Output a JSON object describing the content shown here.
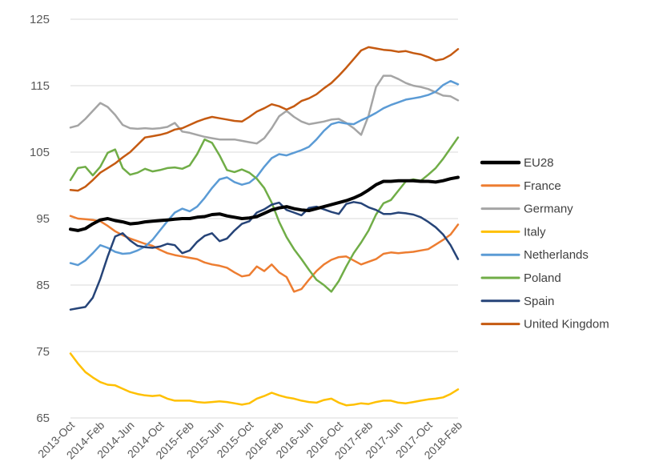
{
  "chart_data": {
    "type": "line",
    "title": "",
    "xlabel": "",
    "ylabel": "",
    "ylim": [
      65,
      125
    ],
    "yticks": [
      65,
      75,
      85,
      95,
      105,
      115,
      125
    ],
    "grid": true,
    "legend_position": "right",
    "x": [
      "2013-Oct",
      "2013-Nov",
      "2013-Dec",
      "2014-Jan",
      "2014-Feb",
      "2014-Mar",
      "2014-Apr",
      "2014-May",
      "2014-Jun",
      "2014-Jul",
      "2014-Aug",
      "2014-Sep",
      "2014-Oct",
      "2014-Nov",
      "2014-Dec",
      "2015-Jan",
      "2015-Feb",
      "2015-Mar",
      "2015-Apr",
      "2015-May",
      "2015-Jun",
      "2015-Jul",
      "2015-Aug",
      "2015-Sep",
      "2015-Oct",
      "2015-Nov",
      "2015-Dec",
      "2016-Jan",
      "2016-Feb",
      "2016-Mar",
      "2016-Apr",
      "2016-May",
      "2016-Jun",
      "2016-Jul",
      "2016-Aug",
      "2016-Sep",
      "2016-Oct",
      "2016-Nov",
      "2016-Dec",
      "2017-Jan",
      "2017-Feb",
      "2017-Mar",
      "2017-Apr",
      "2017-May",
      "2017-Jun",
      "2017-Jul",
      "2017-Aug",
      "2017-Sep",
      "2017-Oct",
      "2017-Nov",
      "2017-Dec",
      "2018-Jan",
      "2018-Feb"
    ],
    "x_tick_labels": [
      "2013-Oct",
      "2014-Feb",
      "2014-Jun",
      "2014-Oct",
      "2015-Feb",
      "2015-Jun",
      "2015-Oct",
      "2016-Feb",
      "2016-Jun",
      "2016-Oct",
      "2017-Feb",
      "2017-Jun",
      "2017-Oct",
      "2018-Feb"
    ],
    "series": [
      {
        "name": "EU28",
        "color": "#000000",
        "width": 4,
        "values": [
          93.4,
          93.2,
          93.5,
          94.2,
          94.8,
          95.0,
          94.7,
          94.5,
          94.2,
          94.3,
          94.5,
          94.6,
          94.7,
          94.8,
          94.9,
          95.0,
          95.0,
          95.2,
          95.3,
          95.6,
          95.7,
          95.4,
          95.2,
          95.0,
          95.1,
          95.3,
          95.8,
          96.3,
          96.6,
          96.8,
          96.5,
          96.3,
          96.2,
          96.5,
          96.8,
          97.1,
          97.4,
          97.7,
          98.1,
          98.6,
          99.3,
          100.1,
          100.6,
          100.6,
          100.7,
          100.7,
          100.7,
          100.6,
          100.6,
          100.5,
          100.7,
          101.0,
          101.2
        ]
      },
      {
        "name": "France",
        "color": "#ED7D31",
        "width": 2.5,
        "values": [
          95.4,
          95.0,
          94.9,
          94.8,
          94.6,
          93.9,
          93.1,
          92.5,
          92.0,
          91.6,
          91.2,
          90.9,
          90.3,
          89.8,
          89.5,
          89.3,
          89.1,
          88.9,
          88.4,
          88.1,
          87.9,
          87.6,
          86.9,
          86.3,
          86.5,
          87.8,
          87.1,
          88.1,
          86.9,
          86.2,
          84.0,
          84.4,
          85.8,
          87.1,
          88.1,
          88.8,
          89.2,
          89.3,
          88.7,
          88.1,
          88.5,
          88.9,
          89.7,
          89.9,
          89.8,
          89.9,
          90.0,
          90.2,
          90.4,
          91.1,
          91.8,
          92.6,
          94.1
        ]
      },
      {
        "name": "Germany",
        "color": "#A5A5A5",
        "width": 2.5,
        "values": [
          108.7,
          109.0,
          110.0,
          111.2,
          112.4,
          111.8,
          110.6,
          109.1,
          108.6,
          108.5,
          108.6,
          108.5,
          108.6,
          108.8,
          109.4,
          108.1,
          107.9,
          107.6,
          107.3,
          107.1,
          106.9,
          106.9,
          106.9,
          106.7,
          106.5,
          106.3,
          107.1,
          108.6,
          110.4,
          111.2,
          110.3,
          109.6,
          109.2,
          109.4,
          109.6,
          109.9,
          110.0,
          109.4,
          108.6,
          107.6,
          110.5,
          114.8,
          116.5,
          116.5,
          116.0,
          115.4,
          115.0,
          114.8,
          114.5,
          114.0,
          113.5,
          113.4,
          112.8
        ]
      },
      {
        "name": "Italy",
        "color": "#FFC000",
        "width": 2.5,
        "values": [
          74.7,
          73.2,
          71.9,
          71.1,
          70.4,
          70.0,
          69.9,
          69.4,
          68.9,
          68.6,
          68.4,
          68.3,
          68.4,
          67.9,
          67.6,
          67.6,
          67.6,
          67.4,
          67.3,
          67.4,
          67.5,
          67.4,
          67.2,
          67.0,
          67.2,
          67.9,
          68.3,
          68.8,
          68.4,
          68.1,
          67.9,
          67.6,
          67.4,
          67.3,
          67.7,
          67.9,
          67.3,
          66.9,
          67.0,
          67.2,
          67.1,
          67.4,
          67.6,
          67.6,
          67.3,
          67.2,
          67.4,
          67.6,
          67.8,
          67.9,
          68.1,
          68.6,
          69.3
        ]
      },
      {
        "name": "Netherlands",
        "color": "#5B9BD5",
        "width": 2.5,
        "values": [
          88.3,
          88.0,
          88.7,
          89.8,
          91.0,
          90.6,
          90.0,
          89.7,
          89.8,
          90.2,
          90.8,
          91.8,
          93.2,
          94.6,
          95.9,
          96.5,
          96.1,
          96.8,
          98.1,
          99.6,
          100.9,
          101.2,
          100.5,
          100.1,
          100.4,
          101.3,
          102.8,
          104.1,
          104.7,
          104.5,
          104.9,
          105.3,
          105.8,
          106.9,
          108.2,
          109.2,
          109.5,
          109.3,
          109.2,
          109.8,
          110.3,
          110.9,
          111.6,
          112.1,
          112.5,
          112.9,
          113.1,
          113.3,
          113.6,
          114.1,
          115.1,
          115.7,
          115.2
        ]
      },
      {
        "name": "Poland",
        "color": "#70AD47",
        "width": 2.5,
        "values": [
          100.8,
          102.6,
          102.8,
          101.5,
          102.8,
          104.9,
          105.4,
          102.6,
          101.6,
          101.9,
          102.5,
          102.1,
          102.3,
          102.6,
          102.7,
          102.5,
          103.0,
          104.7,
          106.9,
          106.4,
          104.5,
          102.3,
          102.0,
          102.4,
          101.9,
          101.0,
          99.6,
          97.4,
          94.5,
          92.2,
          90.4,
          88.9,
          87.3,
          85.8,
          85.0,
          84.0,
          85.6,
          87.8,
          89.8,
          91.4,
          93.2,
          95.6,
          97.3,
          97.8,
          99.2,
          100.6,
          100.9,
          100.7,
          101.6,
          102.6,
          104.0,
          105.6,
          107.2
        ]
      },
      {
        "name": "Spain",
        "color": "#264478",
        "width": 2.5,
        "values": [
          81.3,
          81.5,
          81.7,
          83.1,
          85.9,
          89.3,
          92.3,
          92.8,
          91.7,
          90.9,
          90.7,
          90.6,
          90.8,
          91.2,
          91.0,
          89.8,
          90.2,
          91.5,
          92.4,
          92.8,
          91.6,
          92.0,
          93.2,
          94.2,
          94.6,
          95.9,
          96.4,
          97.1,
          97.4,
          96.3,
          95.9,
          95.5,
          96.6,
          96.8,
          96.4,
          96.0,
          95.7,
          97.2,
          97.5,
          97.3,
          96.7,
          96.3,
          95.7,
          95.7,
          95.9,
          95.8,
          95.6,
          95.2,
          94.5,
          93.7,
          92.6,
          91.0,
          88.9
        ]
      },
      {
        "name": "United Kingdom",
        "color": "#C55A11",
        "width": 2.5,
        "values": [
          99.3,
          99.2,
          99.8,
          100.8,
          101.9,
          102.6,
          103.3,
          104.2,
          105.0,
          106.1,
          107.2,
          107.4,
          107.6,
          107.9,
          108.4,
          108.6,
          109.1,
          109.6,
          110.0,
          110.3,
          110.1,
          109.9,
          109.7,
          109.6,
          110.3,
          111.1,
          111.6,
          112.2,
          111.9,
          111.4,
          111.9,
          112.7,
          113.1,
          113.7,
          114.6,
          115.4,
          116.5,
          117.7,
          119.0,
          120.3,
          120.8,
          120.6,
          120.4,
          120.3,
          120.1,
          120.2,
          119.9,
          119.7,
          119.3,
          118.8,
          119.0,
          119.6,
          120.5
        ]
      }
    ]
  }
}
